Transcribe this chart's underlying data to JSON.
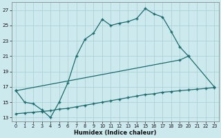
{
  "xlabel": "Humidex (Indice chaleur)",
  "xlim": [
    -0.5,
    23.5
  ],
  "ylim": [
    12.5,
    28
  ],
  "xticks": [
    0,
    1,
    2,
    3,
    4,
    5,
    6,
    7,
    8,
    9,
    10,
    11,
    12,
    13,
    14,
    15,
    16,
    17,
    18,
    19,
    20,
    21,
    22,
    23
  ],
  "yticks": [
    13,
    15,
    17,
    19,
    21,
    23,
    25,
    27
  ],
  "background_color": "#cce9ee",
  "grid_color": "#a8cdd5",
  "line_color": "#1a6b6b",
  "line1_x": [
    0,
    1,
    2,
    3,
    4,
    5,
    6,
    7,
    8,
    9,
    10,
    11,
    12,
    13,
    14,
    15,
    16,
    17,
    18,
    19,
    20
  ],
  "line1_y": [
    16.5,
    15.0,
    14.8,
    14.0,
    13.0,
    15.0,
    17.5,
    21.0,
    23.2,
    24.0,
    25.8,
    25.0,
    25.3,
    25.5,
    25.9,
    27.2,
    26.5,
    26.1,
    24.2,
    22.2,
    21.0
  ],
  "line2_x": [
    0,
    19,
    20,
    23
  ],
  "line2_y": [
    16.5,
    20.5,
    21.0,
    17.0
  ],
  "line3_x": [
    0,
    1,
    2,
    3,
    4,
    5,
    6,
    7,
    8,
    9,
    10,
    11,
    12,
    13,
    14,
    15,
    16,
    17,
    18,
    19,
    20,
    21,
    22,
    23
  ],
  "line3_y": [
    13.5,
    13.6,
    13.7,
    13.8,
    13.9,
    14.1,
    14.2,
    14.4,
    14.6,
    14.8,
    15.0,
    15.2,
    15.4,
    15.6,
    15.8,
    16.0,
    16.1,
    16.3,
    16.4,
    16.5,
    16.6,
    16.7,
    16.8,
    16.9
  ]
}
